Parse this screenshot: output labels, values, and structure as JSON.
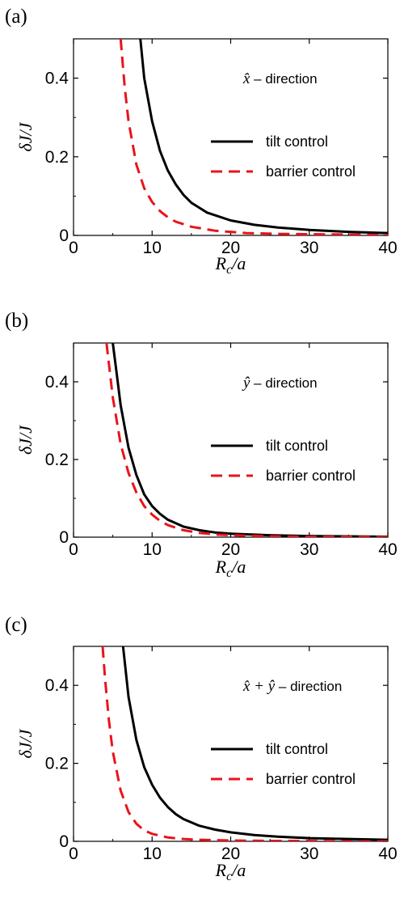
{
  "chart_data": [
    {
      "panel": "(a)",
      "type": "line",
      "annotation_symbol": "x̂",
      "annotation_text": "– direction",
      "xlabel": "Rc/a",
      "ylabel": "δJ/J",
      "xlim": [
        0,
        40
      ],
      "ylim": [
        0,
        0.5
      ],
      "xticks": [
        "0",
        "10",
        "20",
        "30",
        "40"
      ],
      "yticks": [
        "0",
        "0.2",
        "0.4"
      ],
      "legend_position": "center-right",
      "series": [
        {
          "name": "tilt control",
          "color": "#000000",
          "dash": "solid",
          "x": [
            8.5,
            9,
            10,
            11,
            12,
            13,
            14,
            15,
            17,
            20,
            23,
            26,
            30,
            35,
            40
          ],
          "y": [
            0.5,
            0.4,
            0.29,
            0.215,
            0.165,
            0.13,
            0.103,
            0.083,
            0.058,
            0.038,
            0.027,
            0.02,
            0.014,
            0.009,
            0.006
          ]
        },
        {
          "name": "barrier control",
          "color": "#e8141b",
          "dash": "dashed",
          "x": [
            6,
            6.5,
            7,
            8,
            9,
            10,
            11,
            12,
            13,
            15,
            18,
            22,
            26,
            30,
            35,
            40
          ],
          "y": [
            0.5,
            0.38,
            0.29,
            0.18,
            0.12,
            0.085,
            0.062,
            0.046,
            0.035,
            0.022,
            0.012,
            0.006,
            0.004,
            0.003,
            0.002,
            0.001
          ]
        }
      ]
    },
    {
      "panel": "(b)",
      "type": "line",
      "annotation_symbol": "ŷ",
      "annotation_text": "– direction",
      "xlabel": "Rc/a",
      "ylabel": "δJ/J",
      "xlim": [
        0,
        40
      ],
      "ylim": [
        0,
        0.5
      ],
      "xticks": [
        "0",
        "10",
        "20",
        "30",
        "40"
      ],
      "yticks": [
        "0",
        "0.2",
        "0.4"
      ],
      "legend_position": "center-right",
      "series": [
        {
          "name": "tilt control",
          "color": "#000000",
          "dash": "solid",
          "x": [
            5,
            5.5,
            6,
            7,
            8,
            9,
            10,
            11,
            12,
            14,
            16,
            18,
            20,
            25,
            30,
            35,
            40
          ],
          "y": [
            0.5,
            0.42,
            0.34,
            0.23,
            0.16,
            0.11,
            0.08,
            0.06,
            0.045,
            0.027,
            0.018,
            0.012,
            0.009,
            0.005,
            0.003,
            0.002,
            0.001
          ]
        },
        {
          "name": "barrier control",
          "color": "#e8141b",
          "dash": "dashed",
          "x": [
            4.2,
            5,
            6,
            7,
            8,
            9,
            10,
            11,
            12,
            14,
            16,
            18,
            20,
            25,
            30,
            35,
            40
          ],
          "y": [
            0.5,
            0.36,
            0.24,
            0.165,
            0.115,
            0.08,
            0.058,
            0.042,
            0.031,
            0.018,
            0.011,
            0.007,
            0.005,
            0.002,
            0.001,
            0.001,
            0.0
          ]
        }
      ]
    },
    {
      "panel": "(c)",
      "type": "line",
      "annotation_symbol": "x̂ + ŷ",
      "annotation_text": "– direction",
      "xlabel": "Rc/a",
      "ylabel": "δJ/J",
      "xlim": [
        0,
        40
      ],
      "ylim": [
        0,
        0.5
      ],
      "xticks": [
        "0",
        "10",
        "20",
        "30",
        "40"
      ],
      "yticks": [
        "0",
        "0.2",
        "0.4"
      ],
      "legend_position": "center-right",
      "series": [
        {
          "name": "tilt control",
          "color": "#000000",
          "dash": "solid",
          "x": [
            6.3,
            7,
            8,
            9,
            10,
            11,
            12,
            13,
            14,
            16,
            18,
            20,
            23,
            26,
            30,
            35,
            40
          ],
          "y": [
            0.5,
            0.37,
            0.26,
            0.19,
            0.145,
            0.112,
            0.088,
            0.07,
            0.057,
            0.04,
            0.03,
            0.023,
            0.016,
            0.012,
            0.008,
            0.006,
            0.004
          ]
        },
        {
          "name": "barrier control",
          "color": "#e8141b",
          "dash": "dashed",
          "x": [
            3.7,
            4,
            4.5,
            5,
            6,
            7,
            8,
            9,
            10,
            12,
            14,
            16,
            20,
            25,
            30,
            35,
            40
          ],
          "y": [
            0.5,
            0.42,
            0.31,
            0.23,
            0.13,
            0.075,
            0.045,
            0.028,
            0.019,
            0.01,
            0.006,
            0.004,
            0.002,
            0.001,
            0.001,
            0.0,
            0.0
          ]
        }
      ]
    }
  ]
}
